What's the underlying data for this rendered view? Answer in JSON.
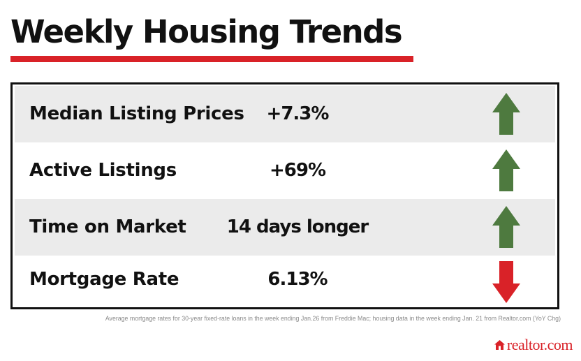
{
  "title": "Weekly Housing Trends",
  "metrics": [
    {
      "label": "Median Listing Prices",
      "value": "+7.3%",
      "direction": "up",
      "icon": "arrow-up-icon",
      "color": "#4e7a3f"
    },
    {
      "label": "Active Listings",
      "value": "+69%",
      "direction": "up",
      "icon": "arrow-up-icon",
      "color": "#4e7a3f"
    },
    {
      "label": "Time on Market",
      "value": "14 days longer",
      "direction": "up",
      "icon": "arrow-up-icon",
      "color": "#4e7a3f"
    },
    {
      "label": "Mortgage Rate",
      "value": "6.13%",
      "direction": "down",
      "icon": "arrow-down-icon",
      "color": "#d92228"
    }
  ],
  "footnote": "Average mortgage rates for 30-year fixed-rate loans in the week ending Jan.26 from Freddie Mac; housing data in the week ending Jan. 21 from Realtor.com (YoY Chg)",
  "brand": {
    "name": "realtor.com",
    "icon": "house-icon",
    "color": "#d92228"
  },
  "colors": {
    "accent": "#d92228",
    "up": "#4e7a3f",
    "down": "#d92228",
    "row_shade": "#ebebeb"
  }
}
